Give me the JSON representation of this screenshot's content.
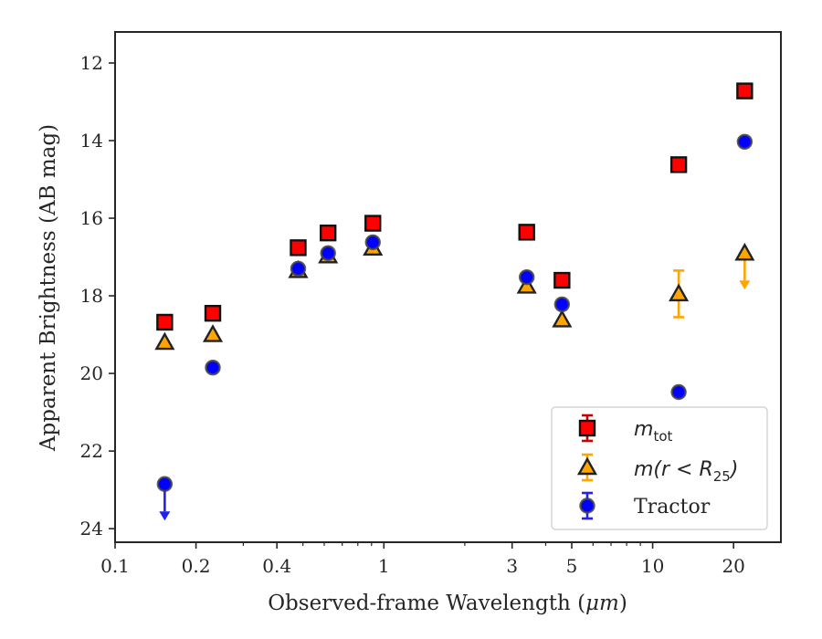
{
  "chart_data": {
    "type": "scatter",
    "xlabel_prefix": "Observed-frame Wavelength (",
    "xlabel_unit": "μm",
    "xlabel_suffix": ")",
    "ylabel": "Apparent Brightness (AB mag)",
    "x_scale": "log",
    "xlim": [
      0.1,
      30
    ],
    "ylim": [
      24.35,
      11.2
    ],
    "y_inverted": true,
    "x_ticks": [
      0.1,
      0.2,
      0.4,
      1,
      3,
      5,
      10,
      20
    ],
    "x_tick_labels": [
      "0.1",
      "0.2",
      "0.4",
      "1",
      "3",
      "5",
      "10",
      "20"
    ],
    "y_ticks": [
      12,
      14,
      16,
      18,
      20,
      22,
      24
    ],
    "y_tick_labels": [
      "12",
      "14",
      "16",
      "18",
      "20",
      "22",
      "24"
    ],
    "legend_position": "lower-right",
    "series": [
      {
        "name": "m_tot",
        "legend_main": "m",
        "legend_sub": "tot",
        "marker": "square",
        "color": "#ff0000",
        "error_color": "#cc0000",
        "points": [
          {
            "x": 0.153,
            "y": 18.68
          },
          {
            "x": 0.231,
            "y": 18.45
          },
          {
            "x": 0.48,
            "y": 16.76
          },
          {
            "x": 0.62,
            "y": 16.38
          },
          {
            "x": 0.91,
            "y": 16.13
          },
          {
            "x": 3.4,
            "y": 16.36
          },
          {
            "x": 4.6,
            "y": 17.6
          },
          {
            "x": 12.5,
            "y": 14.62
          },
          {
            "x": 22.0,
            "y": 12.72
          }
        ]
      },
      {
        "name": "m(r<R25)",
        "legend_main": "m(r < R",
        "legend_sub": "25",
        "legend_end": ")",
        "marker": "triangle",
        "color": "#ffa500",
        "error_color": "#ffa500",
        "points": [
          {
            "x": 0.153,
            "y": 19.2
          },
          {
            "x": 0.231,
            "y": 19.0
          },
          {
            "x": 0.48,
            "y": 17.35
          },
          {
            "x": 0.62,
            "y": 16.97
          },
          {
            "x": 0.91,
            "y": 16.77
          },
          {
            "x": 3.4,
            "y": 17.75
          },
          {
            "x": 4.6,
            "y": 18.62
          },
          {
            "x": 12.5,
            "y": 17.95,
            "yerr": 0.6
          },
          {
            "x": 22.0,
            "y": 16.9,
            "upper_limit": true
          }
        ]
      },
      {
        "name": "Tractor",
        "legend_main": "Tractor",
        "marker": "circle",
        "color": "#0000ff",
        "error_color": "#2222ee",
        "points": [
          {
            "x": 0.153,
            "y": 22.85,
            "upper_limit": true
          },
          {
            "x": 0.231,
            "y": 19.85
          },
          {
            "x": 0.48,
            "y": 17.3
          },
          {
            "x": 0.62,
            "y": 16.9
          },
          {
            "x": 0.91,
            "y": 16.62
          },
          {
            "x": 3.4,
            "y": 17.52
          },
          {
            "x": 4.6,
            "y": 18.22
          },
          {
            "x": 12.5,
            "y": 20.48
          },
          {
            "x": 22.0,
            "y": 14.03
          }
        ]
      }
    ]
  }
}
